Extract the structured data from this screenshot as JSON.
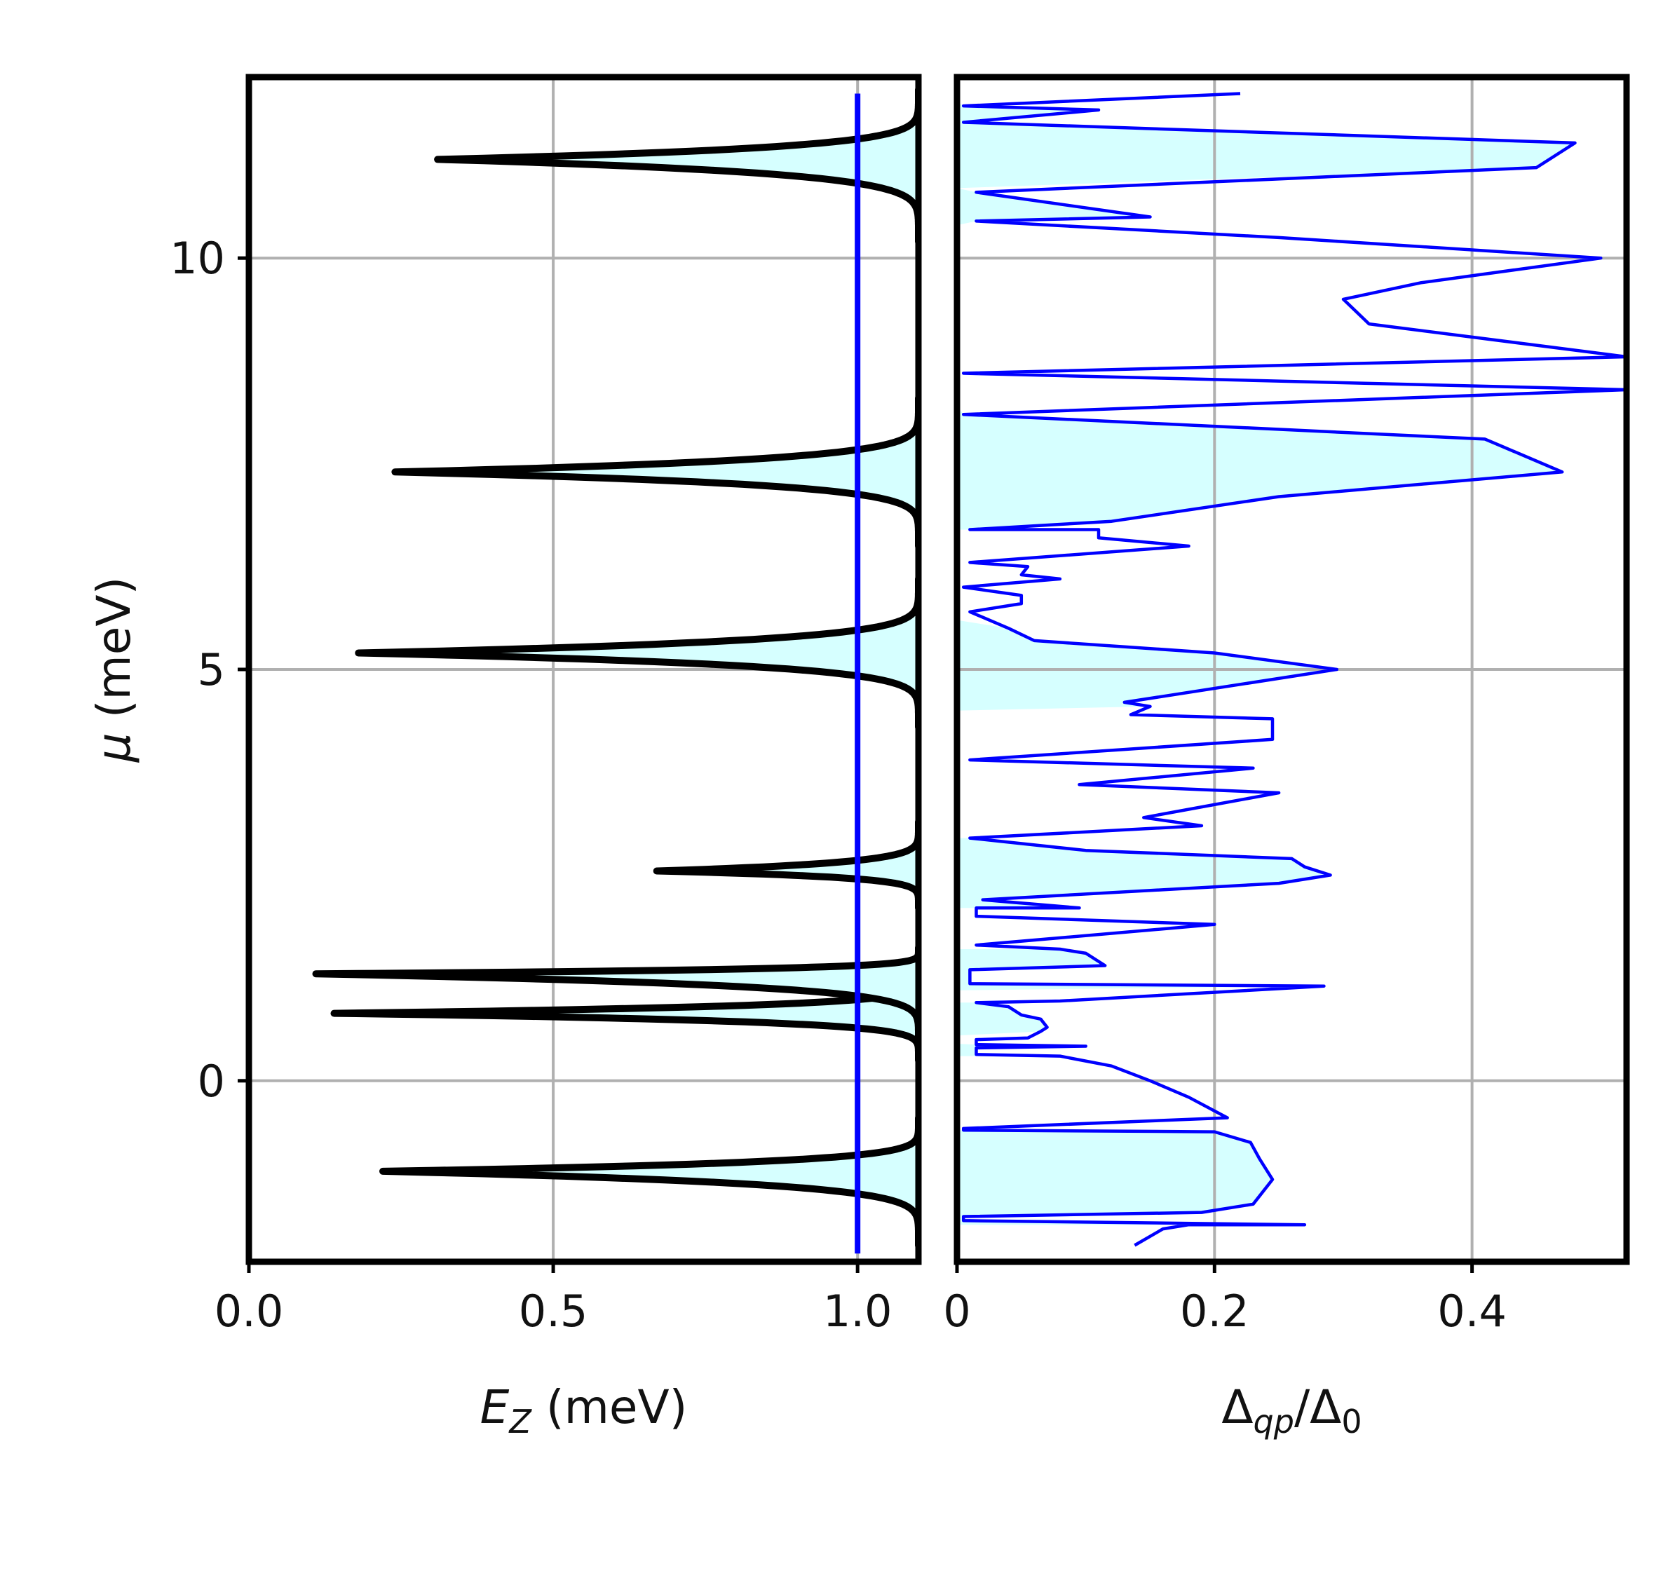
{
  "chart_data": [
    {
      "type": "area",
      "xlabel": {
        "main": "E",
        "sub": "Z",
        "unit": " (meV)"
      },
      "ylabel": {
        "main": "μ",
        "unit": " (meV)"
      },
      "xlim": [
        0,
        1.1
      ],
      "ylim": [
        -2.2,
        12.2
      ],
      "grid": true,
      "xticks": [
        {
          "v": 0,
          "label": "0.0"
        },
        {
          "v": 0.5,
          "label": "0.5"
        },
        {
          "v": 1.0,
          "label": "1.0"
        }
      ],
      "yticks": [
        {
          "v": 0,
          "label": "0"
        },
        {
          "v": 5,
          "label": "5"
        },
        {
          "v": 10,
          "label": "10"
        }
      ],
      "fill_color": "#d6ffff",
      "boundary_color": "#000000",
      "marker_color": "#0000ff",
      "marker_line": {
        "x": 1.0,
        "y": [
          -2.1,
          12.0
        ]
      },
      "lobes": [
        {
          "y_start": -2.0,
          "y_tip": -1.1,
          "y_end": -0.45,
          "x_tip": 0.22
        },
        {
          "y_start": 0.25,
          "y_tip": 0.82,
          "y_end": 1.35,
          "x_tip": 0.14
        },
        {
          "y_start": 0.45,
          "y_tip": 1.3,
          "y_end": 1.62,
          "x_tip": 0.11
        },
        {
          "y_start": 2.1,
          "y_tip": 2.55,
          "y_end": 3.15,
          "x_tip": 0.67
        },
        {
          "y_start": 4.3,
          "y_tip": 5.2,
          "y_end": 6.1,
          "x_tip": 0.18
        },
        {
          "y_start": 6.5,
          "y_tip": 7.4,
          "y_end": 8.3,
          "x_tip": 0.24
        },
        {
          "y_start": 10.2,
          "y_tip": 11.2,
          "y_end": 12.05,
          "x_tip": 0.31
        }
      ]
    },
    {
      "type": "line",
      "xlabel": {
        "main": "Δ",
        "sub": "qp",
        "mid": "/Δ",
        "sub2": "0"
      },
      "xlim": [
        0,
        0.52
      ],
      "ylim": [
        -2.2,
        12.2
      ],
      "grid": true,
      "xticks": [
        {
          "v": 0,
          "label": "0"
        },
        {
          "v": 0.2,
          "label": "0.2"
        },
        {
          "v": 0.4,
          "label": "0.4"
        }
      ],
      "line_color": "#0000ff",
      "fill_color": "#d6ffff",
      "fill_bands": [
        {
          "y0": -1.75,
          "y1": -0.6
        },
        {
          "y0": 0.3,
          "y1": 0.45
        },
        {
          "y0": 0.55,
          "y1": 0.95
        },
        {
          "y0": 1.1,
          "y1": 1.6
        },
        {
          "y0": 2.1,
          "y1": 2.95
        },
        {
          "y0": 4.5,
          "y1": 5.6
        },
        {
          "y0": 6.7,
          "y1": 8.2
        },
        {
          "y0": 10.4,
          "y1": 10.85
        },
        {
          "y0": 10.85,
          "y1": 11.9
        }
      ],
      "series": [
        {
          "points": [
            [
              0.138,
              -2.0
            ],
            [
              0.16,
              -1.8
            ],
            [
              0.18,
              -1.75
            ],
            [
              0.27,
              -1.75
            ],
            [
              0.005,
              -1.7
            ],
            [
              0.005,
              -1.65
            ],
            [
              0.19,
              -1.6
            ],
            [
              0.23,
              -1.5
            ],
            [
              0.245,
              -1.2
            ],
            [
              0.235,
              -0.95
            ],
            [
              0.228,
              -0.75
            ],
            [
              0.2,
              -0.62
            ],
            [
              0.005,
              -0.6
            ],
            [
              0.005,
              -0.58
            ],
            [
              0.21,
              -0.45
            ],
            [
              0.18,
              -0.2
            ],
            [
              0.15,
              0.0
            ],
            [
              0.12,
              0.18
            ],
            [
              0.08,
              0.3
            ],
            [
              0.015,
              0.32
            ],
            [
              0.015,
              0.4
            ],
            [
              0.1,
              0.42
            ],
            [
              0.015,
              0.44
            ],
            [
              0.015,
              0.5
            ],
            [
              0.055,
              0.52
            ],
            [
              0.065,
              0.6
            ],
            [
              0.07,
              0.65
            ],
            [
              0.065,
              0.75
            ],
            [
              0.05,
              0.8
            ],
            [
              0.04,
              0.9
            ],
            [
              0.015,
              0.95
            ],
            [
              0.08,
              0.97
            ],
            [
              0.285,
              1.15
            ],
            [
              0.01,
              1.18
            ],
            [
              0.01,
              1.35
            ],
            [
              0.115,
              1.4
            ],
            [
              0.1,
              1.55
            ],
            [
              0.08,
              1.6
            ],
            [
              0.015,
              1.65
            ],
            [
              0.2,
              1.9
            ],
            [
              0.015,
              2.0
            ],
            [
              0.015,
              2.1
            ],
            [
              0.095,
              2.1
            ],
            [
              0.02,
              2.2
            ],
            [
              0.25,
              2.4
            ],
            [
              0.29,
              2.5
            ],
            [
              0.27,
              2.6
            ],
            [
              0.26,
              2.7
            ],
            [
              0.1,
              2.8
            ],
            [
              0.01,
              2.95
            ],
            [
              0.19,
              3.1
            ],
            [
              0.145,
              3.2
            ],
            [
              0.25,
              3.5
            ],
            [
              0.095,
              3.6
            ],
            [
              0.23,
              3.8
            ],
            [
              0.01,
              3.9
            ],
            [
              0.245,
              4.15
            ],
            [
              0.245,
              4.4
            ],
            [
              0.135,
              4.45
            ],
            [
              0.15,
              4.55
            ],
            [
              0.13,
              4.6
            ],
            [
              0.295,
              5.0
            ],
            [
              0.2,
              5.2
            ],
            [
              0.06,
              5.35
            ],
            [
              0.04,
              5.5
            ],
            [
              0.01,
              5.7
            ],
            [
              0.05,
              5.8
            ],
            [
              0.05,
              5.9
            ],
            [
              0.005,
              6.0
            ],
            [
              0.08,
              6.1
            ],
            [
              0.05,
              6.15
            ],
            [
              0.055,
              6.25
            ],
            [
              0.01,
              6.3
            ],
            [
              0.18,
              6.5
            ],
            [
              0.11,
              6.6
            ],
            [
              0.11,
              6.7
            ],
            [
              0.01,
              6.7
            ],
            [
              0.12,
              6.8
            ],
            [
              0.25,
              7.1
            ],
            [
              0.47,
              7.4
            ],
            [
              0.41,
              7.8
            ],
            [
              0.005,
              8.1
            ],
            [
              0.52,
              8.4
            ],
            [
              0.005,
              8.6
            ],
            [
              0.52,
              8.8
            ],
            [
              0.32,
              9.2
            ],
            [
              0.3,
              9.5
            ],
            [
              0.36,
              9.7
            ],
            [
              0.5,
              10.0
            ],
            [
              0.25,
              10.25
            ],
            [
              0.015,
              10.45
            ],
            [
              0.15,
              10.5
            ],
            [
              0.015,
              10.8
            ],
            [
              0.45,
              11.1
            ],
            [
              0.48,
              11.4
            ],
            [
              0.005,
              11.65
            ],
            [
              0.11,
              11.8
            ],
            [
              0.005,
              11.85
            ],
            [
              0.22,
              12.0
            ]
          ]
        }
      ]
    }
  ]
}
